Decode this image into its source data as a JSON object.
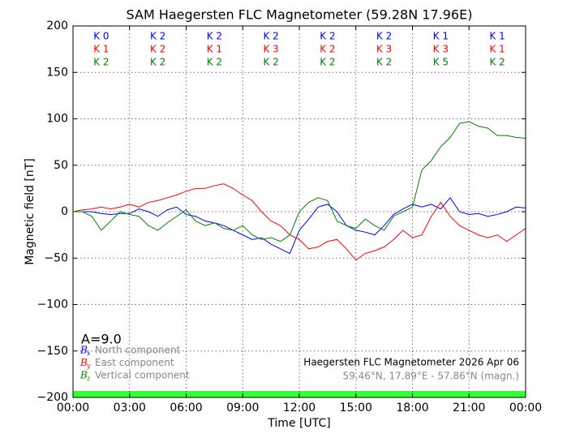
{
  "chart_data": {
    "type": "line",
    "title": "SAM Haegersten FLC Magnetometer (59.28N 17.96E)",
    "x_label": "Time [UTC]",
    "y_label": "Magnetic field [nT]",
    "xlim": [
      0,
      24
    ],
    "xticks": [
      {
        "value": 0,
        "label": "00:00"
      },
      {
        "value": 3,
        "label": "03:00"
      },
      {
        "value": 6,
        "label": "06:00"
      },
      {
        "value": 9,
        "label": "09:00"
      },
      {
        "value": 12,
        "label": "12:00"
      },
      {
        "value": 15,
        "label": "15:00"
      },
      {
        "value": 18,
        "label": "18:00"
      },
      {
        "value": 21,
        "label": "21:00"
      },
      {
        "value": 24,
        "label": "00:00"
      }
    ],
    "ylim": [
      -200,
      200
    ],
    "yticks": [
      200,
      150,
      100,
      50,
      0,
      {
        "value": -50,
        "label": "−50"
      },
      {
        "value": -100,
        "label": "−100"
      },
      {
        "value": -150,
        "label": "−150"
      },
      {
        "value": -200,
        "label": "−200"
      }
    ],
    "grid": true,
    "x": [
      0,
      0.5,
      1,
      1.5,
      2,
      2.5,
      3,
      3.5,
      4,
      4.5,
      5,
      5.5,
      6,
      6.5,
      7,
      7.5,
      8,
      8.5,
      9,
      9.5,
      10,
      10.5,
      11,
      11.5,
      12,
      12.5,
      13,
      13.5,
      14,
      14.5,
      15,
      15.5,
      16,
      16.5,
      17,
      17.5,
      18,
      18.5,
      19,
      19.5,
      20,
      20.5,
      21,
      21.5,
      22,
      22.5,
      23,
      23.5,
      24
    ],
    "series": [
      {
        "name": "North component",
        "symbol": "B",
        "subscript": "x",
        "color": "#0000ff",
        "values": [
          0,
          0,
          0,
          -2,
          -3,
          -2,
          -2,
          3,
          0,
          -5,
          2,
          5,
          -3,
          -5,
          -10,
          -12,
          -15,
          -20,
          -25,
          -30,
          -28,
          -35,
          -40,
          -45,
          -20,
          -8,
          5,
          8,
          0,
          -15,
          -20,
          -22,
          -25,
          -15,
          -3,
          3,
          8,
          5,
          8,
          3,
          15,
          0,
          -3,
          -2,
          -5,
          -3,
          0,
          5,
          4
        ]
      },
      {
        "name": "East component",
        "symbol": "B",
        "subscript": "y",
        "color": "#ff0000",
        "values": [
          0,
          2,
          3,
          5,
          3,
          5,
          8,
          5,
          10,
          12,
          15,
          18,
          22,
          25,
          25,
          28,
          30,
          25,
          18,
          12,
          0,
          -10,
          -15,
          -25,
          -30,
          -40,
          -38,
          -32,
          -30,
          -40,
          -52,
          -45,
          -42,
          -38,
          -30,
          -20,
          -28,
          -25,
          -5,
          10,
          -5,
          -15,
          -20,
          -25,
          -28,
          -25,
          -32,
          -25,
          -18
        ]
      },
      {
        "name": "Vertical component",
        "symbol": "B",
        "subscript": "z",
        "color": "#008000",
        "values": [
          0,
          0,
          -5,
          -20,
          -10,
          0,
          -3,
          -5,
          -15,
          -20,
          -12,
          -5,
          2,
          -10,
          -15,
          -12,
          -18,
          -20,
          -15,
          -25,
          -30,
          -28,
          -32,
          -25,
          0,
          10,
          15,
          12,
          -10,
          -15,
          -18,
          -8,
          -15,
          -20,
          -5,
          0,
          5,
          45,
          55,
          70,
          80,
          95,
          97,
          92,
          90,
          82,
          82,
          80,
          79
        ]
      }
    ],
    "k_indices": {
      "x": [
        1.5,
        4.5,
        7.5,
        10.5,
        13.5,
        16.5,
        19.5,
        22.5
      ],
      "rows": [
        {
          "color": "#0000ff",
          "labels": [
            "K 0",
            "K 2",
            "K 2",
            "K 2",
            "K 2",
            "K 2",
            "K 1",
            "K 1"
          ]
        },
        {
          "color": "#ff0000",
          "labels": [
            "K 1",
            "K 2",
            "K 1",
            "K 3",
            "K 2",
            "K 3",
            "K 3",
            "K 1"
          ]
        },
        {
          "color": "#008000",
          "labels": [
            "K 2",
            "K 2",
            "K 2",
            "K 2",
            "K 2",
            "K 2",
            "K 5",
            "K 2"
          ]
        }
      ]
    },
    "a_index": "A=9.0",
    "station_note": "Haegersten FLC Magnetometer 2026 Apr 06",
    "location_note": "59.46°N, 17.89°E - 57.86°N (magn.)"
  }
}
